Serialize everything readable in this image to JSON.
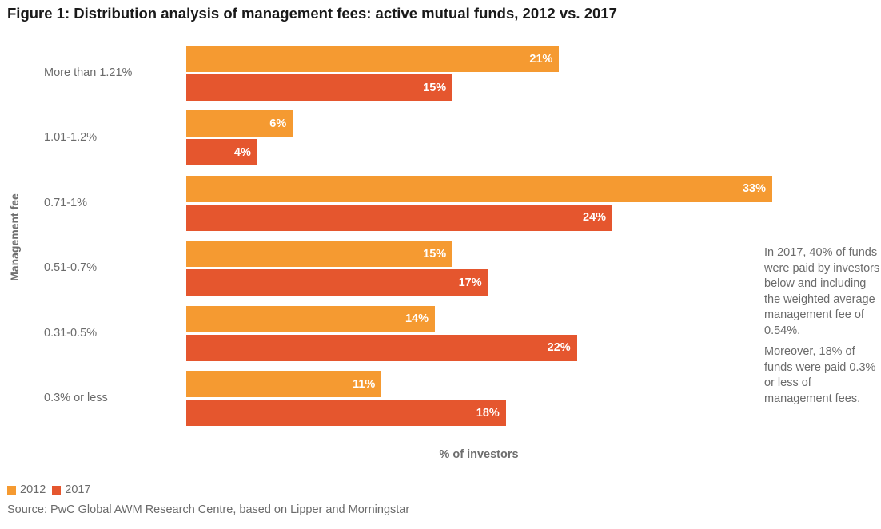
{
  "colors": {
    "series_2012": "#F59A31",
    "series_2017": "#E5562E"
  },
  "chart_data": {
    "type": "bar",
    "orientation": "horizontal",
    "title": "Figure 1: Distribution analysis of management fees: active mutual funds, 2012 vs. 2017",
    "xlabel": "% of investors",
    "ylabel": "Management fee",
    "categories": [
      "More than 1.21%",
      "1.01-1.2%",
      "0.71-1%",
      "0.51-0.7%",
      "0.31-0.5%",
      "0.3% or less"
    ],
    "series": [
      {
        "name": "2012",
        "values": [
          21,
          6,
          33,
          15,
          14,
          11
        ],
        "labels": [
          "21%",
          "6%",
          "33%",
          "15%",
          "14%",
          "11%"
        ]
      },
      {
        "name": "2017",
        "values": [
          15,
          4,
          24,
          17,
          22,
          18
        ],
        "labels": [
          "15%",
          "4%",
          "24%",
          "17%",
          "22%",
          "18%"
        ]
      }
    ],
    "xlim": [
      0,
      33
    ],
    "grid": false,
    "legend": "bottom-left"
  },
  "annotation": {
    "para1": "In 2017, 40% of funds were paid by investors below and including the weighted average management fee of 0.54%.",
    "para2": "Moreover, 18% of funds were paid 0.3% or less of management fees."
  },
  "legend": {
    "items": [
      "2012",
      "2017"
    ]
  },
  "source": "Source: PwC Global AWM Research Centre, based on Lipper and Morningstar"
}
